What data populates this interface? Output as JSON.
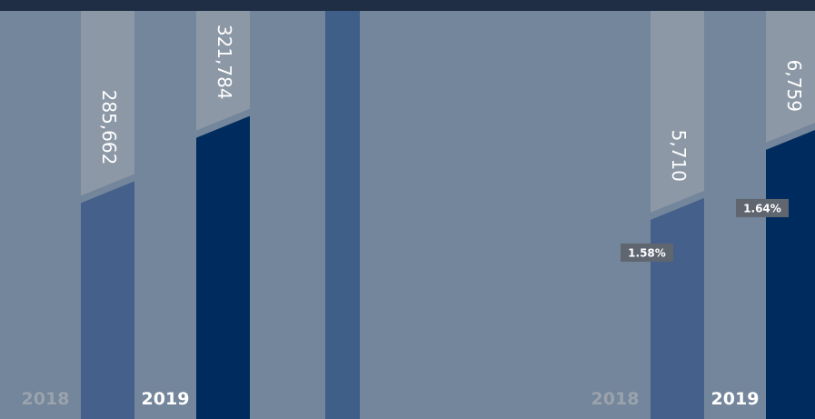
{
  "chart_data": [
    {
      "type": "bar",
      "categories": [
        "2018",
        "2019"
      ],
      "values": [
        285662,
        321784
      ],
      "value_labels": [
        "285,662",
        "321,784"
      ],
      "colors": [
        "#45608a",
        "#002b5e"
      ],
      "ylim": [
        160000,
        386000
      ]
    },
    {
      "type": "bar",
      "categories": [
        "2018",
        "2019"
      ],
      "values": [
        5710,
        6759
      ],
      "value_labels": [
        "5,710",
        "6,759"
      ],
      "share_labels": [
        "1.58%",
        "1.64%"
      ],
      "colors": [
        "#45608a",
        "#002b5e"
      ],
      "ylim": [
        2560,
        8680
      ]
    }
  ]
}
